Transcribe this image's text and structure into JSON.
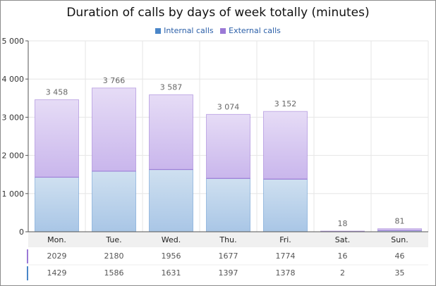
{
  "chart_data": {
    "type": "bar",
    "stacked": true,
    "title": "Duration of calls by days of week totally (minutes)",
    "categories": [
      "Mon.",
      "Tue.",
      "Wed.",
      "Thu.",
      "Fri.",
      "Sat.",
      "Sun."
    ],
    "series": [
      {
        "name": "Internal calls",
        "values": [
          1429,
          1586,
          1631,
          1397,
          1378,
          2,
          35
        ]
      },
      {
        "name": "External calls",
        "values": [
          2029,
          2180,
          1956,
          1677,
          1774,
          16,
          46
        ]
      }
    ],
    "totals": [
      "3 458",
      "3 766",
      "3 587",
      "3 074",
      "3 152",
      "18",
      "81"
    ],
    "y_ticks": [
      "0",
      "1 000",
      "2 000",
      "3 000",
      "4 000",
      "5 000"
    ],
    "ylim": [
      0,
      5000
    ],
    "grid": true,
    "legend_position": "top-center",
    "table": {
      "rows": [
        {
          "series": "External calls",
          "values": [
            "2029",
            "2180",
            "1956",
            "1677",
            "1774",
            "16",
            "46"
          ]
        },
        {
          "series": "Internal calls",
          "values": [
            "1429",
            "1586",
            "1631",
            "1397",
            "1378",
            "2",
            "35"
          ]
        }
      ]
    },
    "colors": {
      "internal": "#4a86c8",
      "external": "#9b79d6",
      "internal_fill_top": "#cfe0f0",
      "internal_fill_bottom": "#a9c6e6",
      "external_fill_top": "#e6dcf6",
      "external_fill_bottom": "#c9b6ec"
    }
  }
}
